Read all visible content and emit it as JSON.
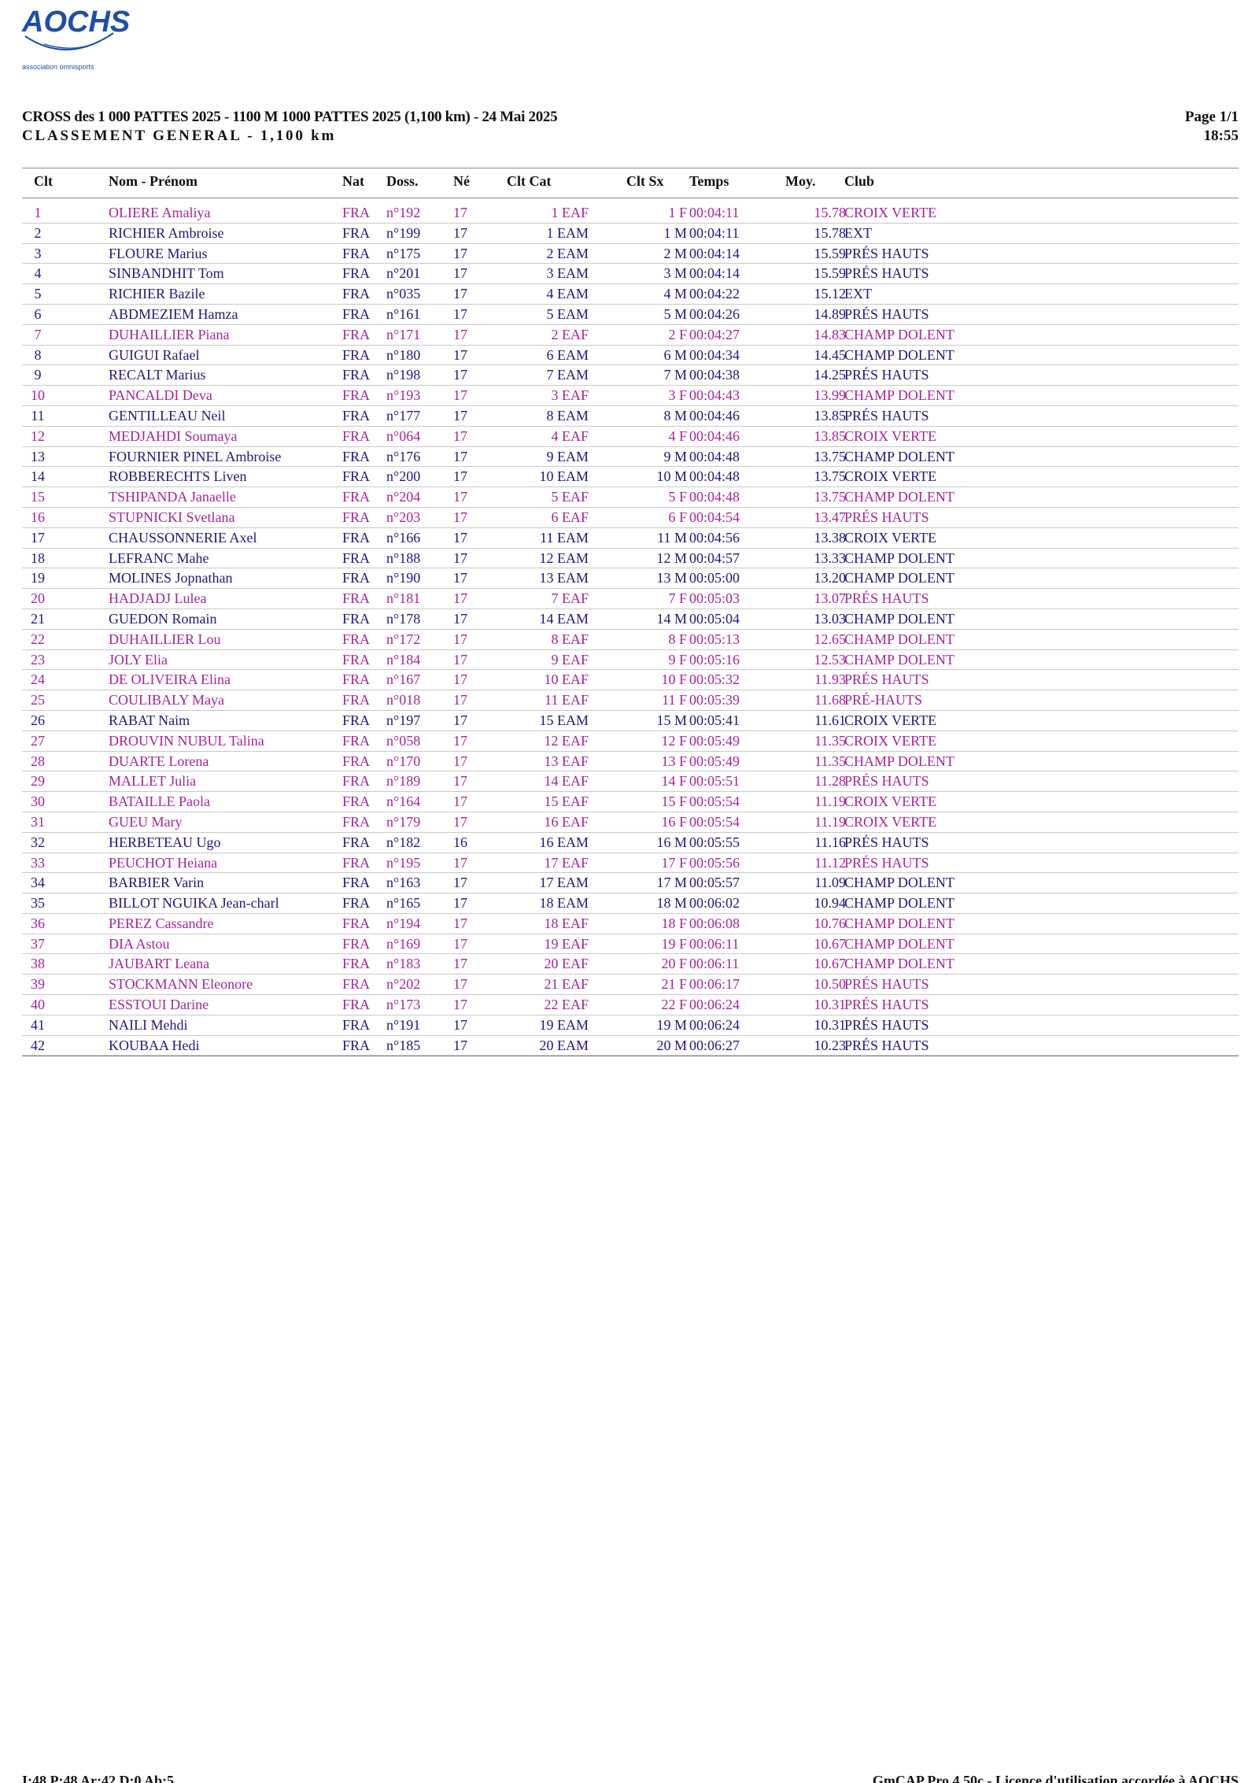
{
  "logo": {
    "text": "AOCHS",
    "tagline": "association omnisports"
  },
  "header": {
    "title": "CROSS des 1 000 PATTES 2025 - 1100 M 1000 PATTES 2025 (1,100 km) - 24 Mai 2025",
    "subtitle": "CLASSEMENT GENERAL - 1,100 km",
    "page": "Page 1/1",
    "time": "18:55"
  },
  "columns": {
    "clt": "Clt",
    "name": "Nom - Prénom",
    "nat": "Nat",
    "doss": "Doss.",
    "ne": "Né",
    "cat": "Clt Cat",
    "sx": "Clt Sx",
    "time": "Temps",
    "moy": "Moy.",
    "club": "Club"
  },
  "rows": [
    {
      "clt": "1",
      "name": "OLIERE Amaliya",
      "nat": "FRA",
      "doss": "n°192",
      "ne": "17",
      "cat": "1 EAF",
      "sx": "1 F",
      "time": "00:04:11",
      "moy": "15.78",
      "club": "CROIX VERTE",
      "sex": "f"
    },
    {
      "clt": "2",
      "name": "RICHIER Ambroise",
      "nat": "FRA",
      "doss": "n°199",
      "ne": "17",
      "cat": "1 EAM",
      "sx": "1 M",
      "time": "00:04:11",
      "moy": "15.78",
      "club": "EXT",
      "sex": "m"
    },
    {
      "clt": "3",
      "name": "FLOURE Marius",
      "nat": "FRA",
      "doss": "n°175",
      "ne": "17",
      "cat": "2 EAM",
      "sx": "2 M",
      "time": "00:04:14",
      "moy": "15.59",
      "club": "PRÉS HAUTS",
      "sex": "m"
    },
    {
      "clt": "4",
      "name": "SINBANDHIT Tom",
      "nat": "FRA",
      "doss": "n°201",
      "ne": "17",
      "cat": "3 EAM",
      "sx": "3 M",
      "time": "00:04:14",
      "moy": "15.59",
      "club": "PRÉS HAUTS",
      "sex": "m"
    },
    {
      "clt": "5",
      "name": "RICHIER Bazile",
      "nat": "FRA",
      "doss": "n°035",
      "ne": "17",
      "cat": "4 EAM",
      "sx": "4 M",
      "time": "00:04:22",
      "moy": "15.12",
      "club": "EXT",
      "sex": "m"
    },
    {
      "clt": "6",
      "name": "ABDMEZIEM Hamza",
      "nat": "FRA",
      "doss": "n°161",
      "ne": "17",
      "cat": "5 EAM",
      "sx": "5 M",
      "time": "00:04:26",
      "moy": "14.89",
      "club": "PRÉS HAUTS",
      "sex": "m"
    },
    {
      "clt": "7",
      "name": "DUHAILLIER Piana",
      "nat": "FRA",
      "doss": "n°171",
      "ne": "17",
      "cat": "2 EAF",
      "sx": "2 F",
      "time": "00:04:27",
      "moy": "14.83",
      "club": "CHAMP DOLENT",
      "sex": "f"
    },
    {
      "clt": "8",
      "name": "GUIGUI Rafael",
      "nat": "FRA",
      "doss": "n°180",
      "ne": "17",
      "cat": "6 EAM",
      "sx": "6 M",
      "time": "00:04:34",
      "moy": "14.45",
      "club": "CHAMP DOLENT",
      "sex": "m"
    },
    {
      "clt": "9",
      "name": "RECALT Marius",
      "nat": "FRA",
      "doss": "n°198",
      "ne": "17",
      "cat": "7 EAM",
      "sx": "7 M",
      "time": "00:04:38",
      "moy": "14.25",
      "club": "PRÉS HAUTS",
      "sex": "m"
    },
    {
      "clt": "10",
      "name": "PANCALDI Deva",
      "nat": "FRA",
      "doss": "n°193",
      "ne": "17",
      "cat": "3 EAF",
      "sx": "3 F",
      "time": "00:04:43",
      "moy": "13.99",
      "club": "CHAMP DOLENT",
      "sex": "f"
    },
    {
      "clt": "11",
      "name": "GENTILLEAU Neil",
      "nat": "FRA",
      "doss": "n°177",
      "ne": "17",
      "cat": "8 EAM",
      "sx": "8 M",
      "time": "00:04:46",
      "moy": "13.85",
      "club": "PRÉS HAUTS",
      "sex": "m"
    },
    {
      "clt": "12",
      "name": "MEDJAHDI Soumaya",
      "nat": "FRA",
      "doss": "n°064",
      "ne": "17",
      "cat": "4 EAF",
      "sx": "4 F",
      "time": "00:04:46",
      "moy": "13.85",
      "club": "CROIX VERTE",
      "sex": "f"
    },
    {
      "clt": "13",
      "name": "FOURNIER PINEL Ambroise",
      "nat": "FRA",
      "doss": "n°176",
      "ne": "17",
      "cat": "9 EAM",
      "sx": "9 M",
      "time": "00:04:48",
      "moy": "13.75",
      "club": "CHAMP DOLENT",
      "sex": "m"
    },
    {
      "clt": "14",
      "name": "ROBBERECHTS Liven",
      "nat": "FRA",
      "doss": "n°200",
      "ne": "17",
      "cat": "10 EAM",
      "sx": "10 M",
      "time": "00:04:48",
      "moy": "13.75",
      "club": "CROIX VERTE",
      "sex": "m"
    },
    {
      "clt": "15",
      "name": "TSHIPANDA Janaelle",
      "nat": "FRA",
      "doss": "n°204",
      "ne": "17",
      "cat": "5 EAF",
      "sx": "5 F",
      "time": "00:04:48",
      "moy": "13.75",
      "club": "CHAMP DOLENT",
      "sex": "f"
    },
    {
      "clt": "16",
      "name": "STUPNICKI Svetlana",
      "nat": "FRA",
      "doss": "n°203",
      "ne": "17",
      "cat": "6 EAF",
      "sx": "6 F",
      "time": "00:04:54",
      "moy": "13.47",
      "club": "PRÉS HAUTS",
      "sex": "f"
    },
    {
      "clt": "17",
      "name": "CHAUSSONNERIE Axel",
      "nat": "FRA",
      "doss": "n°166",
      "ne": "17",
      "cat": "11 EAM",
      "sx": "11 M",
      "time": "00:04:56",
      "moy": "13.38",
      "club": "CROIX VERTE",
      "sex": "m"
    },
    {
      "clt": "18",
      "name": "LEFRANC Mahe",
      "nat": "FRA",
      "doss": "n°188",
      "ne": "17",
      "cat": "12 EAM",
      "sx": "12 M",
      "time": "00:04:57",
      "moy": "13.33",
      "club": "CHAMP DOLENT",
      "sex": "m"
    },
    {
      "clt": "19",
      "name": "MOLINES Jopnathan",
      "nat": "FRA",
      "doss": "n°190",
      "ne": "17",
      "cat": "13 EAM",
      "sx": "13 M",
      "time": "00:05:00",
      "moy": "13.20",
      "club": "CHAMP DOLENT",
      "sex": "m"
    },
    {
      "clt": "20",
      "name": "HADJADJ Lulea",
      "nat": "FRA",
      "doss": "n°181",
      "ne": "17",
      "cat": "7 EAF",
      "sx": "7 F",
      "time": "00:05:03",
      "moy": "13.07",
      "club": "PRÉS HAUTS",
      "sex": "f"
    },
    {
      "clt": "21",
      "name": "GUEDON Romain",
      "nat": "FRA",
      "doss": "n°178",
      "ne": "17",
      "cat": "14 EAM",
      "sx": "14 M",
      "time": "00:05:04",
      "moy": "13.03",
      "club": "CHAMP DOLENT",
      "sex": "m"
    },
    {
      "clt": "22",
      "name": "DUHAILLIER Lou",
      "nat": "FRA",
      "doss": "n°172",
      "ne": "17",
      "cat": "8 EAF",
      "sx": "8 F",
      "time": "00:05:13",
      "moy": "12.65",
      "club": "CHAMP DOLENT",
      "sex": "f"
    },
    {
      "clt": "23",
      "name": "JOLY Elia",
      "nat": "FRA",
      "doss": "n°184",
      "ne": "17",
      "cat": "9 EAF",
      "sx": "9 F",
      "time": "00:05:16",
      "moy": "12.53",
      "club": "CHAMP DOLENT",
      "sex": "f"
    },
    {
      "clt": "24",
      "name": "DE OLIVEIRA Elina",
      "nat": "FRA",
      "doss": "n°167",
      "ne": "17",
      "cat": "10 EAF",
      "sx": "10 F",
      "time": "00:05:32",
      "moy": "11.93",
      "club": "PRÉS HAUTS",
      "sex": "f"
    },
    {
      "clt": "25",
      "name": "COULIBALY Maya",
      "nat": "FRA",
      "doss": "n°018",
      "ne": "17",
      "cat": "11 EAF",
      "sx": "11 F",
      "time": "00:05:39",
      "moy": "11.68",
      "club": "PRÉ-HAUTS",
      "sex": "f"
    },
    {
      "clt": "26",
      "name": "RABAT Naim",
      "nat": "FRA",
      "doss": "n°197",
      "ne": "17",
      "cat": "15 EAM",
      "sx": "15 M",
      "time": "00:05:41",
      "moy": "11.61",
      "club": "CROIX VERTE",
      "sex": "m"
    },
    {
      "clt": "27",
      "name": "DROUVIN NUBUL Talina",
      "nat": "FRA",
      "doss": "n°058",
      "ne": "17",
      "cat": "12 EAF",
      "sx": "12 F",
      "time": "00:05:49",
      "moy": "11.35",
      "club": "CROIX VERTE",
      "sex": "f"
    },
    {
      "clt": "28",
      "name": "DUARTE Lorena",
      "nat": "FRA",
      "doss": "n°170",
      "ne": "17",
      "cat": "13 EAF",
      "sx": "13 F",
      "time": "00:05:49",
      "moy": "11.35",
      "club": "CHAMP DOLENT",
      "sex": "f"
    },
    {
      "clt": "29",
      "name": "MALLET Julia",
      "nat": "FRA",
      "doss": "n°189",
      "ne": "17",
      "cat": "14 EAF",
      "sx": "14 F",
      "time": "00:05:51",
      "moy": "11.28",
      "club": "PRÉS HAUTS",
      "sex": "f"
    },
    {
      "clt": "30",
      "name": "BATAILLE Paola",
      "nat": "FRA",
      "doss": "n°164",
      "ne": "17",
      "cat": "15 EAF",
      "sx": "15 F",
      "time": "00:05:54",
      "moy": "11.19",
      "club": "CROIX VERTE",
      "sex": "f"
    },
    {
      "clt": "31",
      "name": "GUEU Mary",
      "nat": "FRA",
      "doss": "n°179",
      "ne": "17",
      "cat": "16 EAF",
      "sx": "16 F",
      "time": "00:05:54",
      "moy": "11.19",
      "club": "CROIX VERTE",
      "sex": "f"
    },
    {
      "clt": "32",
      "name": "HERBETEAU Ugo",
      "nat": "FRA",
      "doss": "n°182",
      "ne": "16",
      "cat": "16 EAM",
      "sx": "16 M",
      "time": "00:05:55",
      "moy": "11.16",
      "club": "PRÉS HAUTS",
      "sex": "m"
    },
    {
      "clt": "33",
      "name": "PEUCHOT Heiana",
      "nat": "FRA",
      "doss": "n°195",
      "ne": "17",
      "cat": "17 EAF",
      "sx": "17 F",
      "time": "00:05:56",
      "moy": "11.12",
      "club": "PRÉS HAUTS",
      "sex": "f"
    },
    {
      "clt": "34",
      "name": "BARBIER Varin",
      "nat": "FRA",
      "doss": "n°163",
      "ne": "17",
      "cat": "17 EAM",
      "sx": "17 M",
      "time": "00:05:57",
      "moy": "11.09",
      "club": "CHAMP DOLENT",
      "sex": "m"
    },
    {
      "clt": "35",
      "name": "BILLOT NGUIKA Jean-charl",
      "nat": "FRA",
      "doss": "n°165",
      "ne": "17",
      "cat": "18 EAM",
      "sx": "18 M",
      "time": "00:06:02",
      "moy": "10.94",
      "club": "CHAMP DOLENT",
      "sex": "m"
    },
    {
      "clt": "36",
      "name": "PEREZ Cassandre",
      "nat": "FRA",
      "doss": "n°194",
      "ne": "17",
      "cat": "18 EAF",
      "sx": "18 F",
      "time": "00:06:08",
      "moy": "10.76",
      "club": "CHAMP DOLENT",
      "sex": "f"
    },
    {
      "clt": "37",
      "name": "DIA Astou",
      "nat": "FRA",
      "doss": "n°169",
      "ne": "17",
      "cat": "19 EAF",
      "sx": "19 F",
      "time": "00:06:11",
      "moy": "10.67",
      "club": "CHAMP DOLENT",
      "sex": "f"
    },
    {
      "clt": "38",
      "name": "JAUBART Leana",
      "nat": "FRA",
      "doss": "n°183",
      "ne": "17",
      "cat": "20 EAF",
      "sx": "20 F",
      "time": "00:06:11",
      "moy": "10.67",
      "club": "CHAMP DOLENT",
      "sex": "f"
    },
    {
      "clt": "39",
      "name": "STOCKMANN Eleonore",
      "nat": "FRA",
      "doss": "n°202",
      "ne": "17",
      "cat": "21 EAF",
      "sx": "21 F",
      "time": "00:06:17",
      "moy": "10.50",
      "club": "PRÉS HAUTS",
      "sex": "f"
    },
    {
      "clt": "40",
      "name": "ESSTOUI Darine",
      "nat": "FRA",
      "doss": "n°173",
      "ne": "17",
      "cat": "22 EAF",
      "sx": "22 F",
      "time": "00:06:24",
      "moy": "10.31",
      "club": "PRÉS HAUTS",
      "sex": "f"
    },
    {
      "clt": "41",
      "name": "NAILI Mehdi",
      "nat": "FRA",
      "doss": "n°191",
      "ne": "17",
      "cat": "19 EAM",
      "sx": "19 M",
      "time": "00:06:24",
      "moy": "10.31",
      "club": "PRÉS HAUTS",
      "sex": "m"
    },
    {
      "clt": "42",
      "name": "KOUBAA Hedi",
      "nat": "FRA",
      "doss": "n°185",
      "ne": "17",
      "cat": "20 EAM",
      "sx": "20 M",
      "time": "00:06:27",
      "moy": "10.23",
      "club": "PRÉS HAUTS",
      "sex": "m"
    }
  ],
  "footer": {
    "stats": "I:48 P:48 Ar:42 D:0 Ab:5",
    "license": "GmCAP Pro 4.50c - Licence d'utilisation accordée à AOCHS"
  },
  "colors": {
    "female": "#a6249a",
    "male": "#1f1a78",
    "logo": "#1e4fa8"
  }
}
